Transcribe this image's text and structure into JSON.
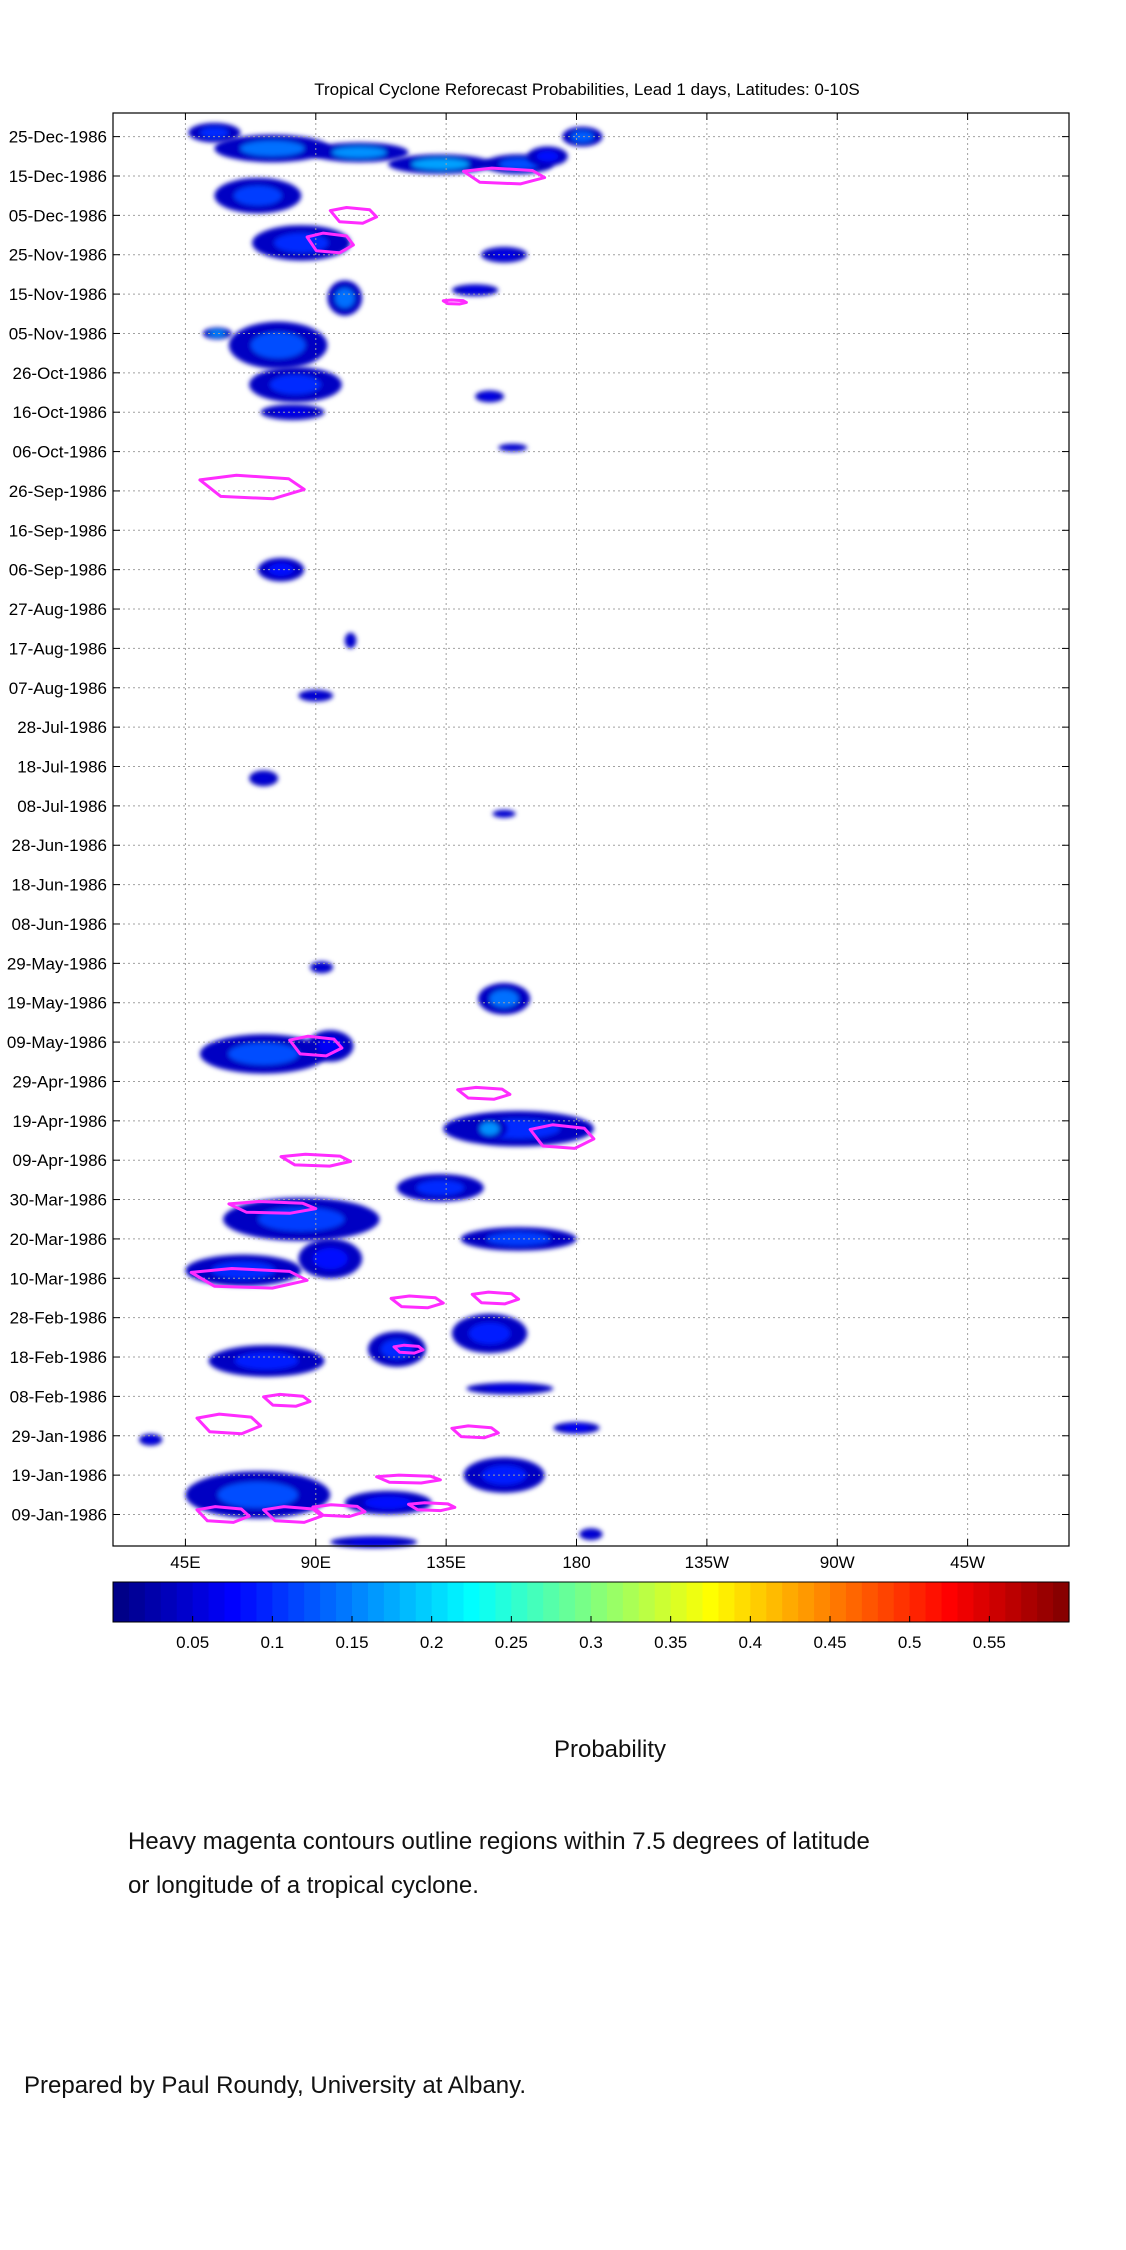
{
  "chart_data": {
    "type": "heatmap",
    "title": "Tropical Cyclone Reforecast Probabilities, Lead 1 days, Latitudes: 0-10S",
    "x_tick_labels": [
      "45E",
      "90E",
      "135E",
      "180",
      "135W",
      "90W",
      "45W"
    ],
    "x_ticks_deg_east": [
      45,
      90,
      135,
      180,
      225,
      270,
      315
    ],
    "xlim_deg_east": [
      20,
      350
    ],
    "y_tick_labels": [
      "25-Dec-1986",
      "15-Dec-1986",
      "05-Dec-1986",
      "25-Nov-1986",
      "15-Nov-1986",
      "05-Nov-1986",
      "26-Oct-1986",
      "16-Oct-1986",
      "06-Oct-1986",
      "26-Sep-1986",
      "16-Sep-1986",
      "06-Sep-1986",
      "27-Aug-1986",
      "17-Aug-1986",
      "07-Aug-1986",
      "28-Jul-1986",
      "18-Jul-1986",
      "08-Jul-1986",
      "28-Jun-1986",
      "18-Jun-1986",
      "08-Jun-1986",
      "29-May-1986",
      "19-May-1986",
      "09-May-1986",
      "29-Apr-1986",
      "19-Apr-1986",
      "09-Apr-1986",
      "30-Mar-1986",
      "20-Mar-1986",
      "10-Mar-1986",
      "28-Feb-1986",
      "18-Feb-1986",
      "08-Feb-1986",
      "29-Jan-1986",
      "19-Jan-1986",
      "09-Jan-1986"
    ],
    "ylim": [
      "1986-01-01",
      "1986-12-31"
    ],
    "grid": true,
    "colorbar": {
      "label": "Probability",
      "min": 0.0,
      "max": 0.6,
      "tick_labels": [
        "0.05",
        "0.1",
        "0.15",
        "0.2",
        "0.25",
        "0.3",
        "0.35",
        "0.4",
        "0.45",
        "0.5",
        "0.55"
      ],
      "tick_values": [
        0.05,
        0.1,
        0.15,
        0.2,
        0.25,
        0.3,
        0.35,
        0.4,
        0.45,
        0.5,
        0.55
      ]
    },
    "probability_blobs": [
      {
        "lon": 55,
        "date": "1986-12-26",
        "lon_span": 18,
        "days": 5,
        "p": 0.1
      },
      {
        "lon": 75,
        "date": "1986-12-22",
        "lon_span": 40,
        "days": 7,
        "p": 0.14
      },
      {
        "lon": 105,
        "date": "1986-12-21",
        "lon_span": 34,
        "days": 5,
        "p": 0.16
      },
      {
        "lon": 133,
        "date": "1986-12-18",
        "lon_span": 36,
        "days": 5,
        "p": 0.17
      },
      {
        "lon": 160,
        "date": "1986-12-18",
        "lon_span": 24,
        "days": 5,
        "p": 0.12
      },
      {
        "lon": 182,
        "date": "1986-12-25",
        "lon_span": 14,
        "days": 5,
        "p": 0.13
      },
      {
        "lon": 170,
        "date": "1986-12-20",
        "lon_span": 14,
        "days": 5,
        "p": 0.08
      },
      {
        "lon": 70,
        "date": "1986-12-10",
        "lon_span": 30,
        "days": 9,
        "p": 0.11
      },
      {
        "lon": 85,
        "date": "1986-11-28",
        "lon_span": 34,
        "days": 9,
        "p": 0.1
      },
      {
        "lon": 100,
        "date": "1986-11-14",
        "lon_span": 12,
        "days": 9,
        "p": 0.14
      },
      {
        "lon": 56,
        "date": "1986-11-05",
        "lon_span": 10,
        "days": 3,
        "p": 0.15
      },
      {
        "lon": 77,
        "date": "1986-11-02",
        "lon_span": 34,
        "days": 12,
        "p": 0.12
      },
      {
        "lon": 83,
        "date": "1986-10-23",
        "lon_span": 32,
        "days": 9,
        "p": 0.1
      },
      {
        "lon": 82,
        "date": "1986-10-16",
        "lon_span": 22,
        "days": 4,
        "p": 0.06
      },
      {
        "lon": 155,
        "date": "1986-11-25",
        "lon_span": 16,
        "days": 4,
        "p": 0.06
      },
      {
        "lon": 145,
        "date": "1986-11-16",
        "lon_span": 16,
        "days": 3,
        "p": 0.06
      },
      {
        "lon": 150,
        "date": "1986-10-20",
        "lon_span": 10,
        "days": 3,
        "p": 0.06
      },
      {
        "lon": 158,
        "date": "1986-10-07",
        "lon_span": 10,
        "days": 2,
        "p": 0.05
      },
      {
        "lon": 78,
        "date": "1986-09-06",
        "lon_span": 16,
        "days": 6,
        "p": 0.08
      },
      {
        "lon": 102,
        "date": "1986-08-19",
        "lon_span": 4,
        "days": 4,
        "p": 0.05
      },
      {
        "lon": 90,
        "date": "1986-08-05",
        "lon_span": 12,
        "days": 3,
        "p": 0.05
      },
      {
        "lon": 72,
        "date": "1986-07-15",
        "lon_span": 10,
        "days": 4,
        "p": 0.05
      },
      {
        "lon": 155,
        "date": "1986-07-06",
        "lon_span": 8,
        "days": 2,
        "p": 0.05
      },
      {
        "lon": 92,
        "date": "1986-05-28",
        "lon_span": 8,
        "days": 3,
        "p": 0.05
      },
      {
        "lon": 155,
        "date": "1986-05-20",
        "lon_span": 18,
        "days": 8,
        "p": 0.14
      },
      {
        "lon": 72,
        "date": "1986-05-06",
        "lon_span": 44,
        "days": 10,
        "p": 0.12
      },
      {
        "lon": 95,
        "date": "1986-05-08",
        "lon_span": 16,
        "days": 8,
        "p": 0.07
      },
      {
        "lon": 160,
        "date": "1986-04-17",
        "lon_span": 52,
        "days": 9,
        "p": 0.1
      },
      {
        "lon": 150,
        "date": "1986-04-17",
        "lon_span": 12,
        "days": 6,
        "p": 0.16
      },
      {
        "lon": 133,
        "date": "1986-04-02",
        "lon_span": 30,
        "days": 7,
        "p": 0.1
      },
      {
        "lon": 85,
        "date": "1986-03-25",
        "lon_span": 54,
        "days": 11,
        "p": 0.11
      },
      {
        "lon": 65,
        "date": "1986-03-12",
        "lon_span": 40,
        "days": 8,
        "p": 0.1
      },
      {
        "lon": 160,
        "date": "1986-03-20",
        "lon_span": 40,
        "days": 6,
        "p": 0.11
      },
      {
        "lon": 95,
        "date": "1986-03-15",
        "lon_span": 22,
        "days": 10,
        "p": 0.08
      },
      {
        "lon": 73,
        "date": "1986-02-17",
        "lon_span": 40,
        "days": 8,
        "p": 0.09
      },
      {
        "lon": 118,
        "date": "1986-02-20",
        "lon_span": 20,
        "days": 9,
        "p": 0.1
      },
      {
        "lon": 150,
        "date": "1986-02-24",
        "lon_span": 26,
        "days": 10,
        "p": 0.09
      },
      {
        "lon": 157,
        "date": "1986-02-10",
        "lon_span": 30,
        "days": 3,
        "p": 0.06
      },
      {
        "lon": 180,
        "date": "1986-01-31",
        "lon_span": 16,
        "days": 3,
        "p": 0.07
      },
      {
        "lon": 33,
        "date": "1986-01-28",
        "lon_span": 8,
        "days": 3,
        "p": 0.06
      },
      {
        "lon": 70,
        "date": "1986-01-14",
        "lon_span": 50,
        "days": 12,
        "p": 0.12
      },
      {
        "lon": 115,
        "date": "1986-01-12",
        "lon_span": 30,
        "days": 6,
        "p": 0.08
      },
      {
        "lon": 155,
        "date": "1986-01-19",
        "lon_span": 28,
        "days": 9,
        "p": 0.09
      },
      {
        "lon": 110,
        "date": "1986-01-02",
        "lon_span": 30,
        "days": 3,
        "p": 0.06
      },
      {
        "lon": 185,
        "date": "1986-01-04",
        "lon_span": 8,
        "days": 3,
        "p": 0.05
      }
    ],
    "cyclone_contours": [
      {
        "lon": 155,
        "date": "1986-12-15",
        "lon_span": 28,
        "days": 4
      },
      {
        "lon": 103,
        "date": "1986-12-05",
        "lon_span": 16,
        "days": 4
      },
      {
        "lon": 95,
        "date": "1986-11-28",
        "lon_span": 16,
        "days": 5
      },
      {
        "lon": 138,
        "date": "1986-11-13",
        "lon_span": 8,
        "days": 1
      },
      {
        "lon": 68,
        "date": "1986-09-27",
        "lon_span": 36,
        "days": 6
      },
      {
        "lon": 90,
        "date": "1986-05-08",
        "lon_span": 18,
        "days": 5
      },
      {
        "lon": 148,
        "date": "1986-04-26",
        "lon_span": 18,
        "days": 3
      },
      {
        "lon": 175,
        "date": "1986-04-15",
        "lon_span": 22,
        "days": 6
      },
      {
        "lon": 90,
        "date": "1986-04-09",
        "lon_span": 24,
        "days": 3
      },
      {
        "lon": 75,
        "date": "1986-03-28",
        "lon_span": 30,
        "days": 3
      },
      {
        "lon": 67,
        "date": "1986-03-10",
        "lon_span": 40,
        "days": 5
      },
      {
        "lon": 125,
        "date": "1986-03-04",
        "lon_span": 18,
        "days": 3
      },
      {
        "lon": 152,
        "date": "1986-03-05",
        "lon_span": 16,
        "days": 3
      },
      {
        "lon": 122,
        "date": "1986-02-20",
        "lon_span": 10,
        "days": 2
      },
      {
        "lon": 80,
        "date": "1986-02-07",
        "lon_span": 16,
        "days": 3
      },
      {
        "lon": 60,
        "date": "1986-02-01",
        "lon_span": 22,
        "days": 5
      },
      {
        "lon": 145,
        "date": "1986-01-30",
        "lon_span": 16,
        "days": 3
      },
      {
        "lon": 122,
        "date": "1986-01-18",
        "lon_span": 22,
        "days": 2
      },
      {
        "lon": 130,
        "date": "1986-01-11",
        "lon_span": 16,
        "days": 2
      },
      {
        "lon": 58,
        "date": "1986-01-09",
        "lon_span": 18,
        "days": 4
      },
      {
        "lon": 82,
        "date": "1986-01-09",
        "lon_span": 20,
        "days": 4
      },
      {
        "lon": 98,
        "date": "1986-01-10",
        "lon_span": 18,
        "days": 3
      }
    ]
  },
  "caption": {
    "probability_label": "Probability",
    "note_line_1": "Heavy magenta contours outline regions within 7.5 degrees of latitude",
    "note_line_2": "or longitude of a tropical cyclone.",
    "credit": "Prepared by Paul Roundy, University at Albany."
  },
  "colors": {
    "contour": "#ff2cff",
    "grid": "#a0a0a0",
    "axis": "#000000"
  }
}
